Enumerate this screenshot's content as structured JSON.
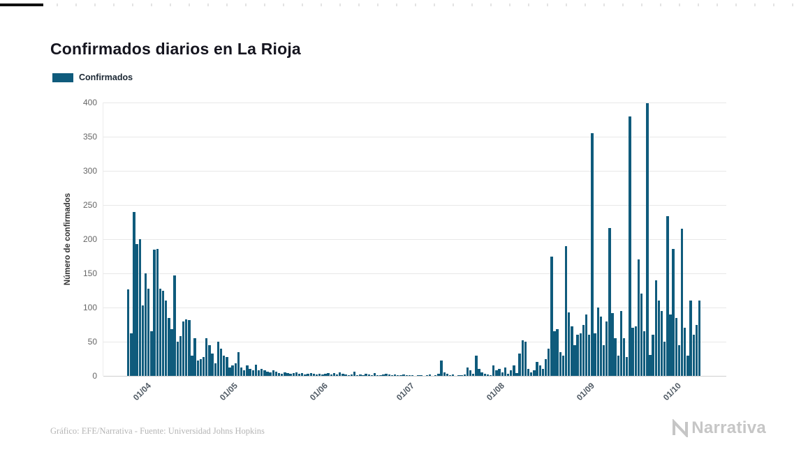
{
  "page": {
    "footer": {
      "source": "Gráfico: EFE/Narrativa - Fuente: Universidad Johns Hopkins",
      "brand": "Narrativa"
    }
  },
  "chart_data": {
    "type": "bar",
    "title": "Confirmados diarios en La Rioja",
    "xlabel": "",
    "ylabel": "Número de confirmados",
    "legend": [
      "Confirmados"
    ],
    "legend_position": "top-left",
    "grid": true,
    "ylim": [
      0,
      400
    ],
    "yticks": [
      0,
      50,
      100,
      150,
      200,
      250,
      300,
      350,
      400
    ],
    "x_tick_labels": [
      "01/04",
      "01/05",
      "01/06",
      "01/07",
      "01/08",
      "01/09",
      "01/10"
    ],
    "x_tick_indices": [
      6,
      36,
      67,
      97,
      128,
      159,
      189
    ],
    "bar_color": "#0f5b7c",
    "values": [
      127,
      62,
      240,
      193,
      200,
      103,
      150,
      128,
      65,
      185,
      186,
      128,
      125,
      110,
      85,
      68,
      147,
      50,
      58,
      80,
      83,
      82,
      30,
      55,
      22,
      25,
      28,
      55,
      45,
      33,
      18,
      50,
      40,
      30,
      28,
      12,
      15,
      18,
      35,
      12,
      8,
      15,
      10,
      8,
      16,
      8,
      10,
      8,
      6,
      5,
      8,
      6,
      4,
      3,
      5,
      4,
      3,
      4,
      5,
      3,
      4,
      2,
      3,
      4,
      3,
      2,
      3,
      2,
      3,
      4,
      2,
      4,
      2,
      5,
      3,
      2,
      1,
      2,
      6,
      1,
      2,
      1,
      3,
      2,
      1,
      4,
      1,
      1,
      2,
      3,
      2,
      1,
      2,
      1,
      1,
      2,
      1,
      1,
      1,
      0,
      1,
      1,
      0,
      1,
      2,
      0,
      1,
      3,
      22,
      5,
      3,
      1,
      2,
      0,
      1,
      1,
      2,
      12,
      8,
      3,
      30,
      10,
      5,
      3,
      2,
      1,
      15,
      8,
      10,
      5,
      12,
      3,
      8,
      15,
      4,
      33,
      52,
      50,
      10,
      5,
      8,
      20,
      15,
      10,
      25,
      40,
      174,
      65,
      68,
      35,
      30,
      190,
      93,
      72,
      45,
      60,
      62,
      75,
      90,
      60,
      355,
      62,
      100,
      87,
      45,
      80,
      216,
      92,
      55,
      30,
      95,
      55,
      28,
      380,
      70,
      72,
      170,
      120,
      65,
      399,
      31,
      60,
      140,
      110,
      95,
      50,
      234,
      90,
      186,
      85,
      45,
      215,
      70,
      30,
      110,
      60,
      75,
      110
    ]
  }
}
